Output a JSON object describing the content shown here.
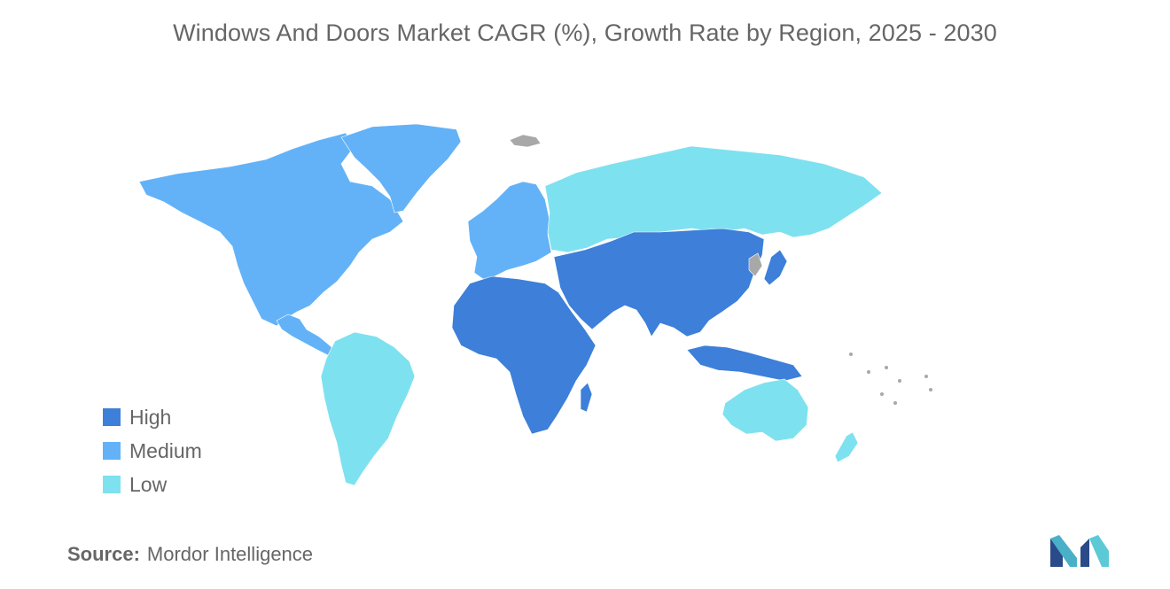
{
  "title": "Windows And Doors Market CAGR (%), Growth Rate by Region, 2025 - 2030",
  "legend": [
    {
      "label": "High",
      "color": "#3d7fd9"
    },
    {
      "label": "Medium",
      "color": "#63b2f7"
    },
    {
      "label": "Low",
      "color": "#7ee1ef"
    }
  ],
  "no_data_color": "#a8a8a8",
  "regions": [
    {
      "name": "North America",
      "level": "Medium"
    },
    {
      "name": "Greenland",
      "level": "Medium"
    },
    {
      "name": "Europe",
      "level": "Medium"
    },
    {
      "name": "South America",
      "level": "Low"
    },
    {
      "name": "Russia",
      "level": "Low"
    },
    {
      "name": "Australia and New Zealand",
      "level": "Low"
    },
    {
      "name": "Africa",
      "level": "High"
    },
    {
      "name": "Middle East",
      "level": "High"
    },
    {
      "name": "Asia",
      "level": "High"
    }
  ],
  "source": {
    "label": "Source:",
    "value": "Mordor Intelligence"
  },
  "logo": {
    "icon": "mordor-intelligence-logo"
  }
}
